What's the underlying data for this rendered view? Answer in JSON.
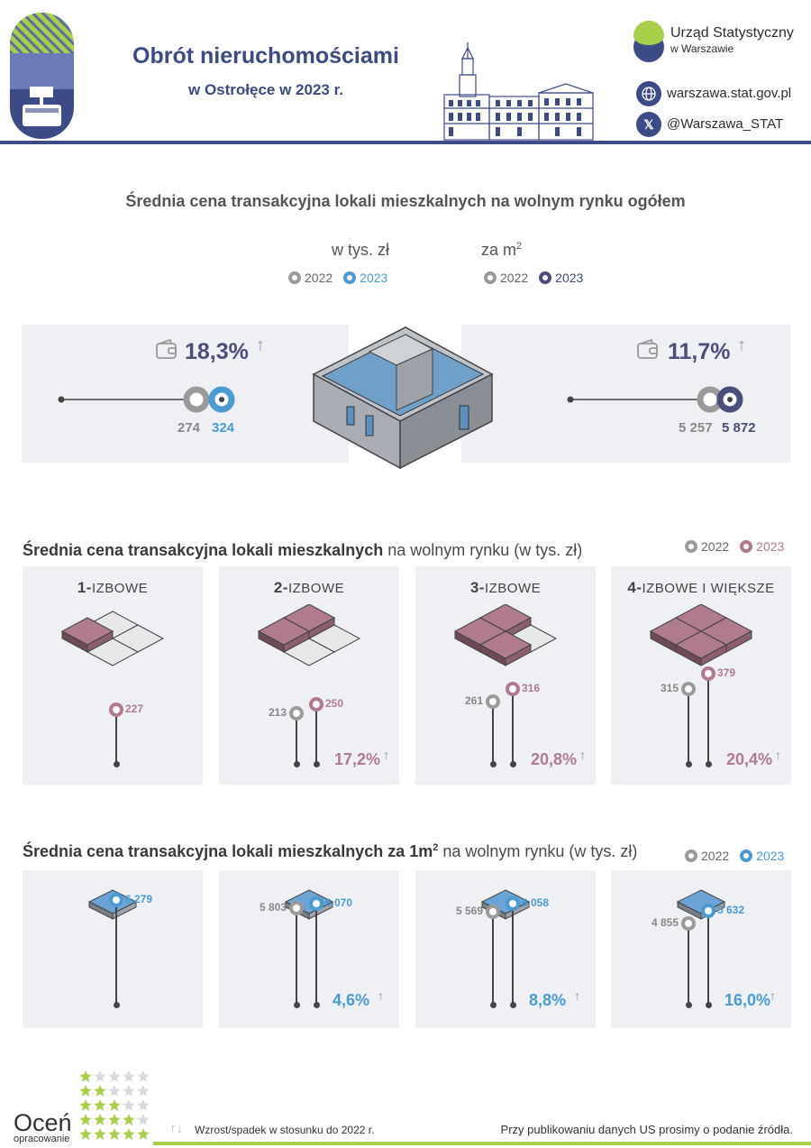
{
  "header": {
    "title": "Obrót nieruchomościami",
    "subtitle": "w Ostrołęce w 2023 r.",
    "org_name": "Urząd Statystyczny",
    "org_sub": "w Warszawie",
    "website": "warszawa.stat.gov.pl",
    "social": "@Warszawa_STAT",
    "colors": {
      "navy": "#3c4a86",
      "green": "#a7cf4a",
      "blue": "#4a9ad4",
      "mauve": "#b07a8f",
      "gray": "#9a9a9a"
    }
  },
  "section1": {
    "title": "Średnia cena transakcyjna lokali mieszkalnych na wolnym rynku ogółem",
    "unit_total": "w tys. zł",
    "unit_m2_prefix": "za m",
    "unit_m2_sup": "2",
    "legend": [
      "2022",
      "2023"
    ],
    "left": {
      "pct": "18,3%",
      "v2022": "274",
      "v2023": "324"
    },
    "right": {
      "pct": "11,7%",
      "v2022": "5 257",
      "v2023": "5 872"
    }
  },
  "section2": {
    "title_bold": "Średnia cena transakcyjna lokali mieszkalnych",
    "title_rest": " na wolnym rynku (w tys. zł)",
    "legend": [
      "2022",
      "2023"
    ],
    "cards": [
      {
        "num": "1-",
        "label": "IZBOWE",
        "v2022": "",
        "v2023": "227",
        "pct": ""
      },
      {
        "num": "2-",
        "label": "IZBOWE",
        "v2022": "213",
        "v2023": "250",
        "pct": "17,2%"
      },
      {
        "num": "3-",
        "label": "IZBOWE",
        "v2022": "261",
        "v2023": "316",
        "pct": "20,8%"
      },
      {
        "num": "4-",
        "label": "IZBOWE I WIĘKSZE",
        "v2022": "315",
        "v2023": "379",
        "pct": "20,4%"
      }
    ]
  },
  "section3": {
    "title_bold": "Średnia cena transakcyjna lokali mieszkalnych za 1m",
    "title_sup": "2",
    "title_rest": " na wolnym rynku (w tys. zł)",
    "legend": [
      "2022",
      "2023"
    ],
    "cards": [
      {
        "v2022": "",
        "v2023": "6 279",
        "pct": ""
      },
      {
        "v2022": "5 803",
        "v2023": "6 070",
        "pct": "4,6%"
      },
      {
        "v2022": "5 569",
        "v2023": "6 058",
        "pct": "8,8%"
      },
      {
        "v2022": "4 855",
        "v2023": "5 632",
        "pct": "16,0%"
      }
    ]
  },
  "chart_data": [
    {
      "type": "scatter",
      "title": "Średnia cena transakcyjna lokali mieszkalnych na wolnym rynku ogółem",
      "ylabel": "w tys. zł",
      "series": [
        {
          "name": "2022",
          "values": [
            274
          ]
        },
        {
          "name": "2023",
          "values": [
            324
          ]
        }
      ],
      "change": "18,3%"
    },
    {
      "type": "scatter",
      "title": "Średnia cena transakcyjna lokali mieszkalnych na wolnym rynku ogółem",
      "ylabel": "za m2",
      "series": [
        {
          "name": "2022",
          "values": [
            5257
          ]
        },
        {
          "name": "2023",
          "values": [
            5872
          ]
        }
      ],
      "change": "11,7%"
    },
    {
      "type": "bar",
      "title": "Średnia cena transakcyjna lokali mieszkalnych na wolnym rynku (w tys. zł)",
      "categories": [
        "1-IZBOWE",
        "2-IZBOWE",
        "3-IZBOWE",
        "4-IZBOWE I WIĘKSZE"
      ],
      "series": [
        {
          "name": "2022",
          "values": [
            null,
            213,
            261,
            315
          ]
        },
        {
          "name": "2023",
          "values": [
            227,
            250,
            316,
            379
          ]
        }
      ],
      "changes": [
        null,
        "17,2%",
        "20,8%",
        "20,4%"
      ]
    },
    {
      "type": "bar",
      "title": "Średnia cena transakcyjna lokali mieszkalnych za 1m2 na wolnym rynku (w tys. zł)",
      "categories": [
        "1-IZBOWE",
        "2-IZBOWE",
        "3-IZBOWE",
        "4-IZBOWE I WIĘKSZE"
      ],
      "series": [
        {
          "name": "2022",
          "values": [
            null,
            5803,
            5569,
            4855
          ]
        },
        {
          "name": "2023",
          "values": [
            6279,
            6070,
            6058,
            5632
          ]
        }
      ],
      "changes": [
        null,
        "4,6%",
        "8,8%",
        "16,0%"
      ]
    }
  ],
  "footer": {
    "rate_title": "Oceń",
    "rate_sub": "opracowanie",
    "arrows": "↑↓",
    "note": "Wzrost/spadek w stosunku do 2022 r.",
    "source": "Przy publikowaniu danych US prosimy o podanie źródła."
  }
}
